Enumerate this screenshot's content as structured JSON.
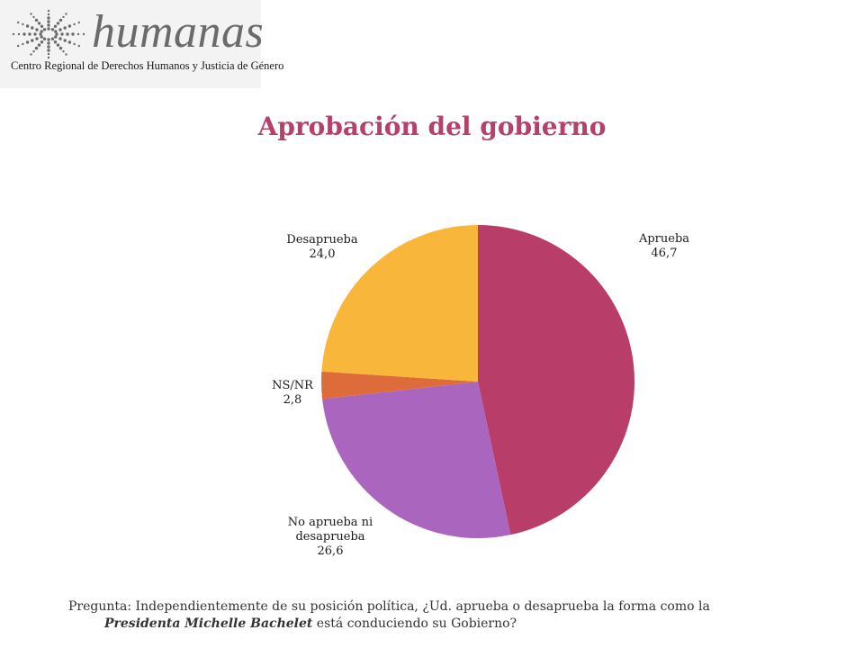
{
  "logo": {
    "icon": "humanas-dotted-star-logo",
    "wordmark": "humanas",
    "subtitle": "Centro Regional de Derechos Humanos y Justicia de Género"
  },
  "chart_data": {
    "type": "pie",
    "title": "Aprobación del gobierno",
    "slices": [
      {
        "label": [
          "Aprueba"
        ],
        "value": 46.7,
        "value_text": "46,7",
        "color": "#b83d69"
      },
      {
        "label": [
          "No aprueba ni",
          "desaprueba"
        ],
        "value": 26.6,
        "value_text": "26,6",
        "color": "#aa66bf"
      },
      {
        "label": [
          "NS/NR"
        ],
        "value": 2.8,
        "value_text": "2,8",
        "color": "#de6b3a"
      },
      {
        "label": [
          "Desaprueba"
        ],
        "value": 24.0,
        "value_text": "24,0",
        "color": "#f8b73b"
      }
    ]
  },
  "question": {
    "prefix": "Pregunta: Independientemente de su posición política, ¿Ud. aprueba o desaprueba la forma como la",
    "bold": "Presidenta Michelle Bachelet",
    "suffix": " está conduciendo su Gobierno?"
  }
}
